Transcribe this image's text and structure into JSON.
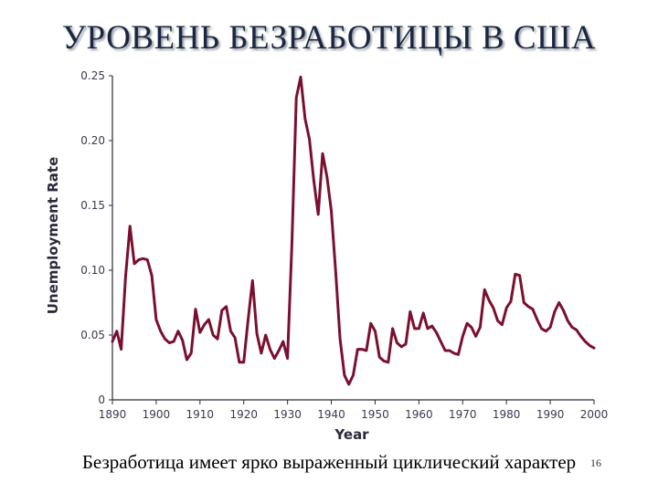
{
  "slide": {
    "title": "УРОВЕНЬ БЕЗРАБОТИЦЫ В США",
    "caption": "Безработица имеет ярко выраженный циклический характер",
    "page_number": "16"
  },
  "chart_data": {
    "type": "line",
    "xlabel": "Year",
    "ylabel": "Unemployment Rate",
    "xlim": [
      1890,
      2000
    ],
    "ylim": [
      0,
      0.25
    ],
    "x_ticks": [
      "1890",
      "1900",
      "1910",
      "1920",
      "1930",
      "1940",
      "1950",
      "1960",
      "1970",
      "1980",
      "1990",
      "2000"
    ],
    "y_ticks": [
      "0",
      "0.05",
      "0.10",
      "0.15",
      "0.20",
      "0.25"
    ],
    "line_color": "#7a1030",
    "grid": false,
    "series": [
      {
        "x": [
          1890,
          1891,
          1892,
          1893,
          1894,
          1895,
          1896,
          1897,
          1898,
          1899,
          1900,
          1901,
          1902,
          1903,
          1904,
          1905,
          1906,
          1907,
          1908,
          1909,
          1910,
          1911,
          1912,
          1913,
          1914,
          1915,
          1916,
          1917,
          1918,
          1919,
          1920,
          1921,
          1922,
          1923,
          1924,
          1925,
          1926,
          1927,
          1928,
          1929,
          1930,
          1931,
          1932,
          1933,
          1934,
          1935,
          1936,
          1937,
          1938,
          1939,
          1940,
          1941,
          1942,
          1943,
          1944,
          1945,
          1946,
          1947,
          1948,
          1949,
          1950,
          1951,
          1952,
          1953,
          1954,
          1955,
          1956,
          1957,
          1958,
          1959,
          1960,
          1961,
          1962,
          1963,
          1964,
          1965,
          1966,
          1967,
          1968,
          1969,
          1970,
          1971,
          1972,
          1973,
          1974,
          1975,
          1976,
          1977,
          1978,
          1979,
          1980,
          1981,
          1982,
          1983,
          1984,
          1985,
          1986,
          1987,
          1988,
          1989,
          1990,
          1991,
          1992,
          1993,
          1994,
          1995,
          1996,
          1997,
          1998,
          1999,
          2000
        ],
        "values": [
          0.045,
          0.053,
          0.039,
          0.095,
          0.134,
          0.105,
          0.108,
          0.109,
          0.108,
          0.096,
          0.062,
          0.053,
          0.047,
          0.044,
          0.045,
          0.053,
          0.046,
          0.031,
          0.036,
          0.07,
          0.052,
          0.058,
          0.062,
          0.05,
          0.047,
          0.069,
          0.072,
          0.053,
          0.048,
          0.029,
          0.029,
          0.062,
          0.092,
          0.051,
          0.036,
          0.05,
          0.039,
          0.032,
          0.038,
          0.045,
          0.032,
          0.12,
          0.233,
          0.249,
          0.217,
          0.201,
          0.169,
          0.143,
          0.19,
          0.172,
          0.146,
          0.099,
          0.047,
          0.019,
          0.012,
          0.019,
          0.039,
          0.039,
          0.038,
          0.059,
          0.053,
          0.033,
          0.03,
          0.029,
          0.055,
          0.044,
          0.041,
          0.043,
          0.068,
          0.055,
          0.055,
          0.067,
          0.055,
          0.057,
          0.052,
          0.045,
          0.038,
          0.038,
          0.036,
          0.035,
          0.049,
          0.059,
          0.056,
          0.049,
          0.056,
          0.085,
          0.077,
          0.071,
          0.061,
          0.058,
          0.071,
          0.076,
          0.097,
          0.096,
          0.075,
          0.072,
          0.07,
          0.062,
          0.055,
          0.053,
          0.056,
          0.068,
          0.075,
          0.069,
          0.061,
          0.056,
          0.054,
          0.049,
          0.045,
          0.042,
          0.04
        ]
      }
    ]
  }
}
